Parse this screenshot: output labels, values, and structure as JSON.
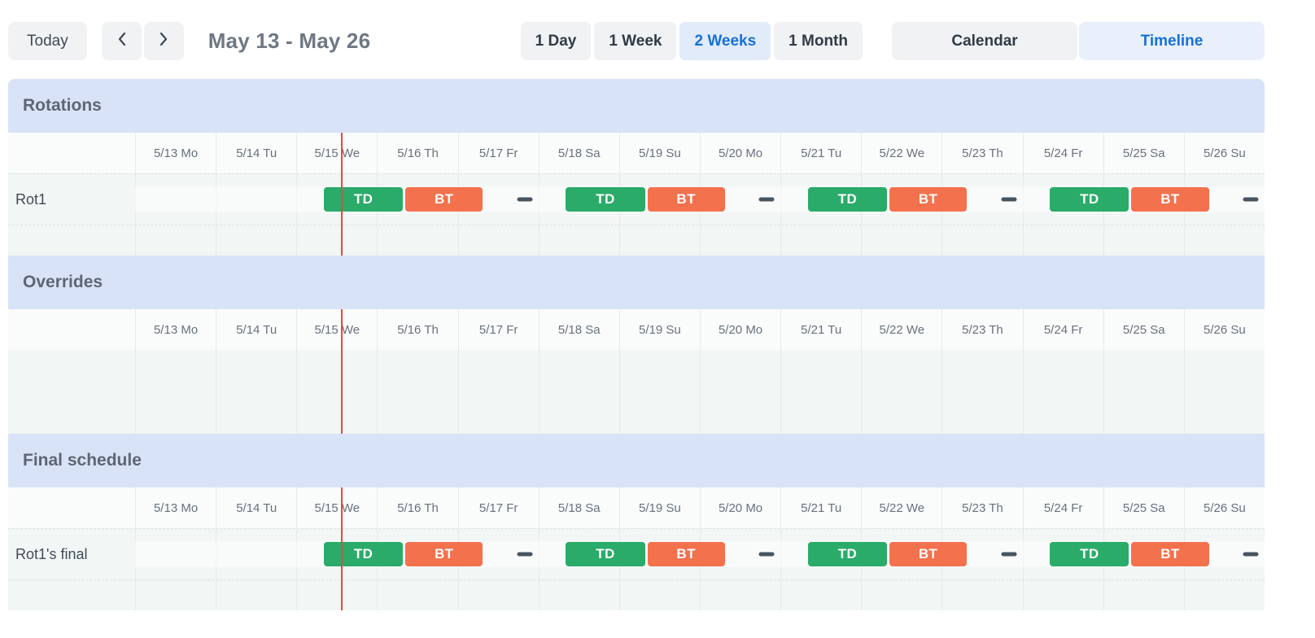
{
  "toolbar": {
    "today_label": "Today",
    "prev_icon": "chevron-left",
    "next_icon": "chevron-right",
    "date_range": "May 13 - May 26",
    "zoom_options": [
      {
        "label": "1 Day",
        "active": false
      },
      {
        "label": "1 Week",
        "active": false
      },
      {
        "label": "2 Weeks",
        "active": true
      },
      {
        "label": "1 Month",
        "active": false
      }
    ],
    "view_options": [
      {
        "label": "Calendar",
        "active": false
      },
      {
        "label": "Timeline",
        "active": true
      }
    ]
  },
  "timeline": {
    "day_labels": [
      "5/13 Mo",
      "5/14 Tu",
      "5/15 We",
      "5/16 Th",
      "5/17 Fr",
      "5/18 Sa",
      "5/19 Su",
      "5/20 Mo",
      "5/21 Tu",
      "5/22 We",
      "5/23 Th",
      "5/24 Fr",
      "5/25 Sa",
      "5/26 Su"
    ],
    "days_count": 14,
    "current_time_position_days": 2.555,
    "colors": {
      "shift_primary": "#2aab69",
      "shift_secondary": "#f3714d",
      "gap_dash": "#4a545f",
      "current_time_line": "#e5483d",
      "section_header_bg": "#d8e3f7",
      "active_blue": "#1670da"
    },
    "sections": [
      {
        "title": "Rotations",
        "spacer_row": true,
        "rows": [
          {
            "label": "Rot1",
            "events": [
              {
                "type": "shift",
                "label": "TD",
                "color_key": "shift_primary",
                "start_day": 2.34,
                "end_day": 3.32
              },
              {
                "type": "shift",
                "label": "BT",
                "color_key": "shift_secondary",
                "start_day": 3.35,
                "end_day": 4.31
              },
              {
                "type": "gap",
                "center_day": 4.83
              },
              {
                "type": "shift",
                "label": "TD",
                "color_key": "shift_primary",
                "start_day": 5.34,
                "end_day": 6.32
              },
              {
                "type": "shift",
                "label": "BT",
                "color_key": "shift_secondary",
                "start_day": 6.35,
                "end_day": 7.31
              },
              {
                "type": "gap",
                "center_day": 7.83
              },
              {
                "type": "shift",
                "label": "TD",
                "color_key": "shift_primary",
                "start_day": 8.34,
                "end_day": 9.32
              },
              {
                "type": "shift",
                "label": "BT",
                "color_key": "shift_secondary",
                "start_day": 9.35,
                "end_day": 10.31
              },
              {
                "type": "gap",
                "center_day": 10.83
              },
              {
                "type": "shift",
                "label": "TD",
                "color_key": "shift_primary",
                "start_day": 11.34,
                "end_day": 12.32
              },
              {
                "type": "shift",
                "label": "BT",
                "color_key": "shift_secondary",
                "start_day": 12.35,
                "end_day": 13.31
              },
              {
                "type": "gap",
                "center_day": 13.83
              }
            ]
          }
        ]
      },
      {
        "title": "Overrides",
        "spacer_row": false,
        "rows": []
      },
      {
        "title": "Final schedule",
        "spacer_row": true,
        "rows": [
          {
            "label": "Rot1's final",
            "events": [
              {
                "type": "shift",
                "label": "TD",
                "color_key": "shift_primary",
                "start_day": 2.34,
                "end_day": 3.32
              },
              {
                "type": "shift",
                "label": "BT",
                "color_key": "shift_secondary",
                "start_day": 3.35,
                "end_day": 4.31
              },
              {
                "type": "gap",
                "center_day": 4.83
              },
              {
                "type": "shift",
                "label": "TD",
                "color_key": "shift_primary",
                "start_day": 5.34,
                "end_day": 6.32
              },
              {
                "type": "shift",
                "label": "BT",
                "color_key": "shift_secondary",
                "start_day": 6.35,
                "end_day": 7.31
              },
              {
                "type": "gap",
                "center_day": 7.83
              },
              {
                "type": "shift",
                "label": "TD",
                "color_key": "shift_primary",
                "start_day": 8.34,
                "end_day": 9.32
              },
              {
                "type": "shift",
                "label": "BT",
                "color_key": "shift_secondary",
                "start_day": 9.35,
                "end_day": 10.31
              },
              {
                "type": "gap",
                "center_day": 10.83
              },
              {
                "type": "shift",
                "label": "TD",
                "color_key": "shift_primary",
                "start_day": 11.34,
                "end_day": 12.32
              },
              {
                "type": "shift",
                "label": "BT",
                "color_key": "shift_secondary",
                "start_day": 12.35,
                "end_day": 13.31
              },
              {
                "type": "gap",
                "center_day": 13.83
              }
            ]
          }
        ]
      }
    ]
  }
}
